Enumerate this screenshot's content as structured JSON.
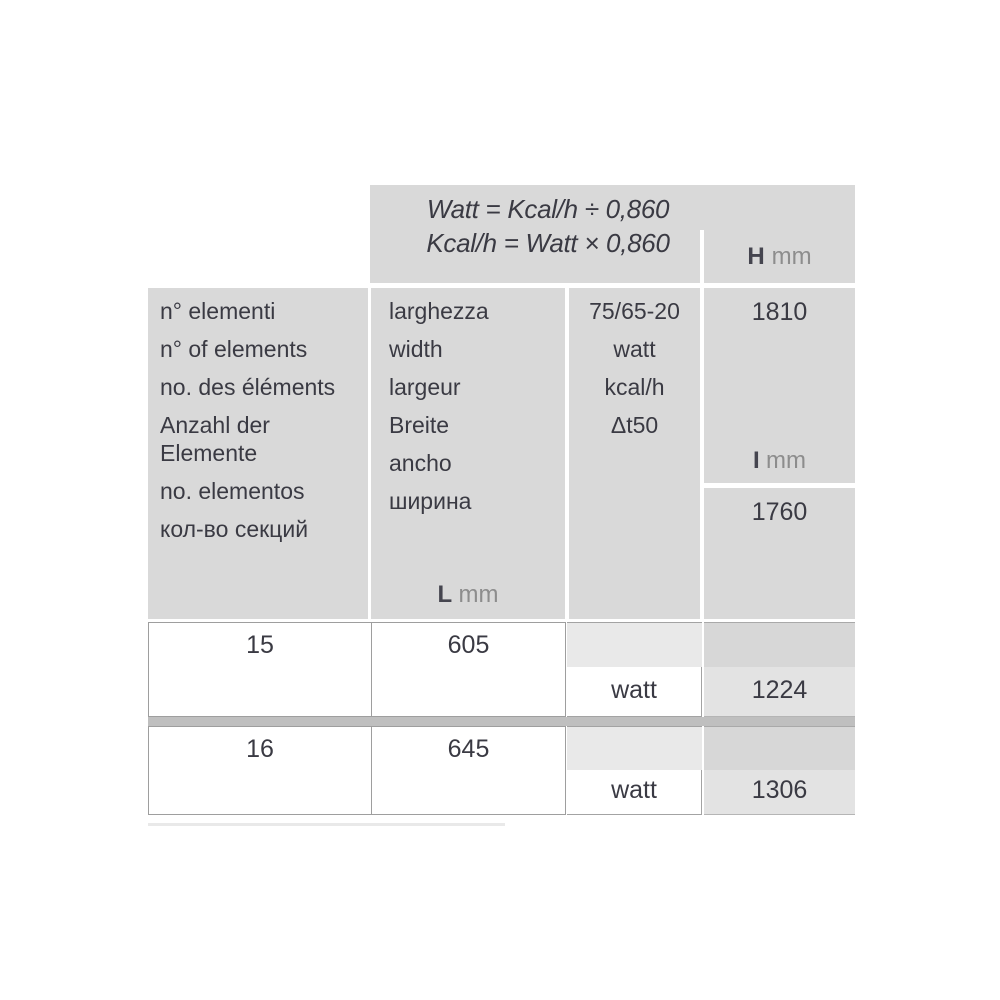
{
  "formulas": {
    "line1": "Watt = Kcal/h ÷ 0,860",
    "line2": "Kcal/h = Watt × 0,860"
  },
  "header": {
    "elements_column": {
      "lines": [
        "n° elementi",
        "n° of elements",
        "no. des éléments",
        "Anzahl der",
        "Elemente",
        "no. elementos",
        "кол-во секций"
      ]
    },
    "width_column": {
      "lines": [
        "larghezza",
        "width",
        "largeur",
        "Breite",
        "ancho",
        "ширина"
      ],
      "unit_label": "L",
      "unit": "mm"
    },
    "power_column": {
      "lines": [
        "75/65-20",
        "watt",
        "kcal/h",
        "Δt50"
      ]
    },
    "h_dimension": {
      "label": "H",
      "unit": "mm",
      "value": "1810"
    },
    "i_dimension": {
      "label": "I",
      "unit": "mm",
      "value": "1760"
    }
  },
  "rows": [
    {
      "elements": "15",
      "length_mm": "605",
      "power_label": "watt",
      "power_value": "1224"
    },
    {
      "elements": "16",
      "length_mm": "645",
      "power_label": "watt",
      "power_value": "1306"
    }
  ],
  "colors": {
    "panel_gray": "#d9d9d9",
    "text_dark": "#3a3a43",
    "unit_gray": "#8d8d8d",
    "cell_border": "#9e9e9e",
    "strip_light": "#e9e9e9",
    "strip_mid": "#d7d7d7",
    "value_cell_bg": "#e3e3e3",
    "row_separator": "#bfbfbf"
  }
}
